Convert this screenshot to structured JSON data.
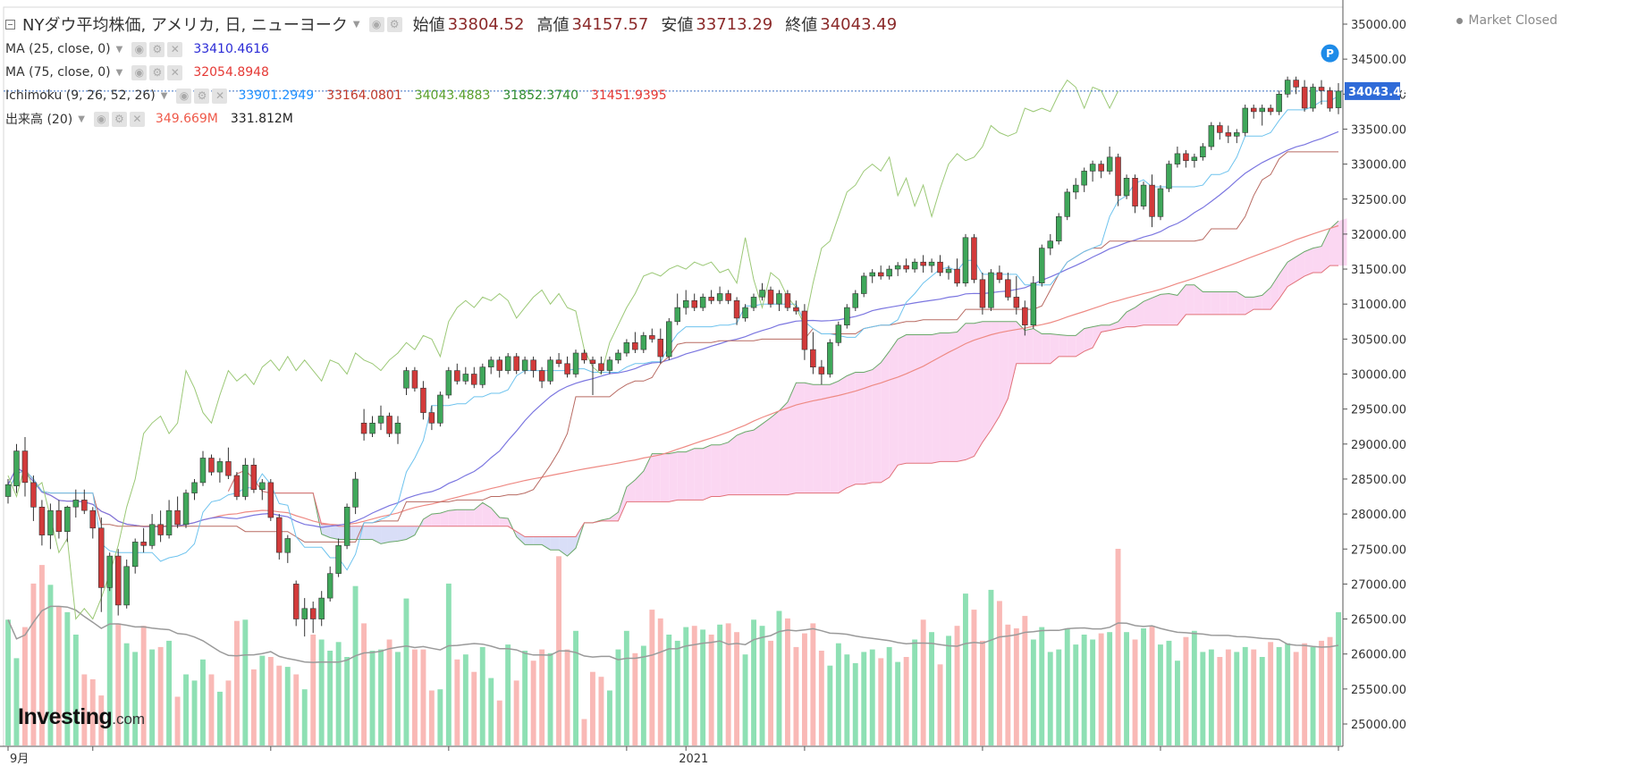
{
  "header": {
    "title": "NYダウ平均株価, アメリカ, 日, ニューヨーク",
    "ohlc": [
      {
        "label": "始値",
        "value": "33804.52"
      },
      {
        "label": "高値",
        "value": "34157.57"
      },
      {
        "label": "安値",
        "value": "33713.29"
      },
      {
        "label": "終値",
        "value": "34043.49"
      }
    ]
  },
  "indicators": {
    "ma25": {
      "label": "MA (25, close, 0)",
      "value": "33410.4616",
      "color": "#2b2bd6"
    },
    "ma75": {
      "label": "MA (75, close, 0)",
      "value": "32054.8948",
      "color": "#e53935"
    },
    "ichimoku": {
      "label": "Ichimoku (9, 26, 52, 26)",
      "values": [
        {
          "value": "33901.2949",
          "color": "#1e90ff"
        },
        {
          "value": "33164.0801",
          "color": "#c0392b"
        },
        {
          "value": "34043.4883",
          "color": "#5aa02c"
        },
        {
          "value": "31852.3740",
          "color": "#2e8b2e"
        },
        {
          "value": "31451.9395",
          "color": "#e53935"
        }
      ]
    },
    "volume": {
      "label": "出来高 (20)",
      "value": "349.669M",
      "value_color": "#ef5a4a",
      "ma_value": "331.812M"
    }
  },
  "status": {
    "market": "Market Closed"
  },
  "logo": {
    "main": "Investing",
    "sub": ".com"
  },
  "last_price": "34043.49",
  "colors": {
    "up": "#3fa75a",
    "down": "#d23a3a",
    "up_vol": "#8ee0b4",
    "down_vol": "#f9b9b6",
    "cloud_bull": "#fbd3f1",
    "cloud_bear": "#d5daf6",
    "ma25": "#7b76e0",
    "ma75": "#ee8a84",
    "tenkan": "#6ec3ee",
    "kijun": "#b86a62",
    "chikou": "#9bc876",
    "vol_ma": "#9a9a9a"
  },
  "chart_data": {
    "type": "candlestick",
    "title": "NYダウ平均株価, アメリカ, 日, ニューヨーク",
    "y_ticks": [
      "35000.00",
      "34500.00",
      "34000.00",
      "33500.00",
      "33000.00",
      "32500.00",
      "32000.00",
      "31500.00",
      "31000.00",
      "30500.00",
      "30000.00",
      "29500.00",
      "29000.00",
      "28500.00",
      "28000.00",
      "27500.00",
      "27000.00",
      "26500.00",
      "26000.00",
      "25500.00",
      "25000.00"
    ],
    "ylim": [
      24650,
      35250
    ],
    "x_labels": [
      "9月",
      "2021"
    ],
    "x_label_index": [
      0,
      80
    ],
    "last_bar_marker": "P",
    "candles_ohlc": [
      [
        28250,
        28500,
        28150,
        28420
      ],
      [
        28400,
        29000,
        28300,
        28900
      ],
      [
        28900,
        29100,
        28250,
        28450
      ],
      [
        28450,
        28550,
        27900,
        28100
      ],
      [
        28100,
        28200,
        27550,
        27700
      ],
      [
        27700,
        28150,
        27500,
        28050
      ],
      [
        28050,
        28200,
        27650,
        27750
      ],
      [
        27750,
        28120,
        27600,
        28100
      ],
      [
        28100,
        28350,
        27950,
        28200
      ],
      [
        28200,
        28350,
        28000,
        28050
      ],
      [
        28050,
        28100,
        27650,
        27800
      ],
      [
        27800,
        27950,
        26600,
        26950
      ],
      [
        26950,
        27450,
        26900,
        27400
      ],
      [
        27400,
        27500,
        26550,
        26700
      ],
      [
        26700,
        27350,
        26650,
        27250
      ],
      [
        27250,
        27650,
        27150,
        27600
      ],
      [
        27600,
        27800,
        27450,
        27550
      ],
      [
        27550,
        28000,
        27500,
        27850
      ],
      [
        27850,
        28050,
        27600,
        27700
      ],
      [
        27700,
        28200,
        27650,
        28050
      ],
      [
        28050,
        28250,
        27800,
        27850
      ],
      [
        27850,
        28350,
        27800,
        28300
      ],
      [
        28300,
        28500,
        28200,
        28450
      ],
      [
        28450,
        28900,
        28400,
        28800
      ],
      [
        28800,
        28850,
        28550,
        28600
      ],
      [
        28600,
        28800,
        28450,
        28750
      ],
      [
        28750,
        28950,
        28500,
        28550
      ],
      [
        28550,
        28600,
        28200,
        28250
      ],
      [
        28250,
        28800,
        28200,
        28700
      ],
      [
        28700,
        28800,
        28300,
        28350
      ],
      [
        28350,
        28500,
        28200,
        28450
      ],
      [
        28450,
        28500,
        27900,
        27950
      ],
      [
        27950,
        28000,
        27350,
        27450
      ],
      [
        27450,
        27700,
        27300,
        27650
      ],
      [
        27000,
        27050,
        26400,
        26500
      ],
      [
        26500,
        26800,
        26250,
        26650
      ],
      [
        26650,
        26750,
        26300,
        26500
      ],
      [
        26500,
        26900,
        26400,
        26800
      ],
      [
        26800,
        27250,
        26750,
        27150
      ],
      [
        27150,
        27650,
        27100,
        27550
      ],
      [
        27550,
        28150,
        27500,
        28100
      ],
      [
        28100,
        28600,
        28000,
        28500
      ],
      [
        29300,
        29500,
        29050,
        29150
      ],
      [
        29150,
        29400,
        29100,
        29300
      ],
      [
        29300,
        29550,
        29200,
        29400
      ],
      [
        29400,
        29450,
        29100,
        29150
      ],
      [
        29150,
        29400,
        29000,
        29300
      ],
      [
        29800,
        30100,
        29700,
        30050
      ],
      [
        30050,
        30100,
        29750,
        29800
      ],
      [
        29800,
        29900,
        29350,
        29450
      ],
      [
        29450,
        29550,
        29200,
        29300
      ],
      [
        29300,
        29750,
        29250,
        29700
      ],
      [
        29700,
        30100,
        29650,
        30050
      ],
      [
        30050,
        30150,
        29850,
        29900
      ],
      [
        29900,
        30100,
        29850,
        30000
      ],
      [
        30000,
        30100,
        29800,
        29850
      ],
      [
        29850,
        30150,
        29800,
        30100
      ],
      [
        30100,
        30250,
        30000,
        30200
      ],
      [
        30200,
        30250,
        29950,
        30050
      ],
      [
        30050,
        30300,
        30000,
        30250
      ],
      [
        30250,
        30300,
        30000,
        30050
      ],
      [
        30050,
        30250,
        30000,
        30200
      ],
      [
        30200,
        30250,
        29950,
        30050
      ],
      [
        30050,
        30100,
        29800,
        29900
      ],
      [
        29900,
        30250,
        29850,
        30200
      ],
      [
        30200,
        30300,
        30100,
        30150
      ],
      [
        30150,
        30250,
        29950,
        30000
      ],
      [
        30000,
        30350,
        29950,
        30300
      ],
      [
        30300,
        30350,
        30150,
        30200
      ],
      [
        30200,
        30250,
        29700,
        30150
      ],
      [
        30150,
        30250,
        30000,
        30050
      ],
      [
        30050,
        30250,
        30000,
        30200
      ],
      [
        30200,
        30350,
        30150,
        30300
      ],
      [
        30300,
        30500,
        30250,
        30450
      ],
      [
        30450,
        30600,
        30300,
        30350
      ],
      [
        30350,
        30600,
        30300,
        30550
      ],
      [
        30550,
        30650,
        30450,
        30500
      ],
      [
        30500,
        30650,
        30150,
        30250
      ],
      [
        30250,
        30800,
        30200,
        30750
      ],
      [
        30750,
        31150,
        30700,
        30950
      ],
      [
        30950,
        31200,
        30850,
        31050
      ],
      [
        31050,
        31150,
        30900,
        30950
      ],
      [
        30950,
        31150,
        30900,
        31100
      ],
      [
        31100,
        31200,
        31000,
        31050
      ],
      [
        31050,
        31250,
        31000,
        31150
      ],
      [
        31150,
        31200,
        31000,
        31050
      ],
      [
        31050,
        31100,
        30700,
        30800
      ],
      [
        30800,
        31000,
        30750,
        30950
      ],
      [
        30950,
        31150,
        30900,
        31100
      ],
      [
        31100,
        31300,
        31050,
        31200
      ],
      [
        31200,
        31250,
        30950,
        31000
      ],
      [
        31000,
        31200,
        30900,
        31150
      ],
      [
        31150,
        31200,
        30900,
        30950
      ],
      [
        30950,
        31050,
        30850,
        30900
      ],
      [
        30900,
        31000,
        30200,
        30350
      ],
      [
        30350,
        30600,
        30000,
        30100
      ],
      [
        30100,
        30200,
        29850,
        30000
      ],
      [
        30000,
        30500,
        29950,
        30450
      ],
      [
        30450,
        30750,
        30400,
        30700
      ],
      [
        30700,
        31000,
        30650,
        30950
      ],
      [
        30950,
        31200,
        30900,
        31150
      ],
      [
        31150,
        31450,
        31100,
        31400
      ],
      [
        31400,
        31500,
        31300,
        31450
      ],
      [
        31450,
        31550,
        31350,
        31400
      ],
      [
        31400,
        31550,
        31350,
        31500
      ],
      [
        31500,
        31600,
        31400,
        31550
      ],
      [
        31550,
        31650,
        31450,
        31500
      ],
      [
        31500,
        31650,
        31450,
        31600
      ],
      [
        31600,
        31700,
        31450,
        31550
      ],
      [
        31550,
        31650,
        31450,
        31600
      ],
      [
        31600,
        31700,
        31400,
        31450
      ],
      [
        31450,
        31550,
        31350,
        31500
      ],
      [
        31500,
        31650,
        31250,
        31300
      ],
      [
        31300,
        32000,
        31250,
        31950
      ],
      [
        31950,
        32000,
        31300,
        31350
      ],
      [
        31350,
        31450,
        30850,
        30950
      ],
      [
        30950,
        31500,
        30900,
        31450
      ],
      [
        31450,
        31550,
        31300,
        31350
      ],
      [
        31350,
        31450,
        31050,
        31100
      ],
      [
        31100,
        31400,
        30850,
        30950
      ],
      [
        30950,
        31050,
        30550,
        30700
      ],
      [
        30700,
        31400,
        30650,
        31300
      ],
      [
        31300,
        31850,
        31250,
        31800
      ],
      [
        31800,
        32000,
        31700,
        31900
      ],
      [
        31900,
        32300,
        31850,
        32250
      ],
      [
        32250,
        32650,
        32200,
        32600
      ],
      [
        32600,
        32800,
        32500,
        32700
      ],
      [
        32700,
        32950,
        32600,
        32900
      ],
      [
        32900,
        33050,
        32750,
        33000
      ],
      [
        33000,
        33050,
        32800,
        32900
      ],
      [
        32900,
        33250,
        32850,
        33100
      ],
      [
        33100,
        33150,
        32400,
        32550
      ],
      [
        32550,
        32850,
        32500,
        32800
      ],
      [
        32800,
        32850,
        32300,
        32400
      ],
      [
        32400,
        32750,
        32350,
        32700
      ],
      [
        32700,
        32850,
        32100,
        32250
      ],
      [
        32250,
        32700,
        32200,
        32650
      ],
      [
        32650,
        33050,
        32600,
        33000
      ],
      [
        33000,
        33250,
        32950,
        33150
      ],
      [
        33150,
        33200,
        32950,
        33050
      ],
      [
        33050,
        33150,
        32950,
        33100
      ],
      [
        33100,
        33300,
        33050,
        33250
      ],
      [
        33250,
        33600,
        33200,
        33550
      ],
      [
        33550,
        33600,
        33350,
        33450
      ],
      [
        33450,
        33550,
        33300,
        33400
      ],
      [
        33400,
        33500,
        33300,
        33450
      ],
      [
        33450,
        33850,
        33400,
        33800
      ],
      [
        33800,
        33850,
        33650,
        33750
      ],
      [
        33750,
        33850,
        33550,
        33800
      ],
      [
        33800,
        33850,
        33700,
        33750
      ],
      [
        33750,
        34050,
        33700,
        34000
      ],
      [
        34000,
        34250,
        33950,
        34200
      ],
      [
        34200,
        34250,
        34000,
        34100
      ],
      [
        34100,
        34200,
        33750,
        33800
      ],
      [
        33800,
        34150,
        33750,
        34100
      ],
      [
        34100,
        34200,
        33850,
        34050
      ],
      [
        34050,
        34100,
        33750,
        33800
      ],
      [
        33804.52,
        34157.57,
        33713.29,
        34043.49
      ]
    ],
    "volume_m": [
      344,
      313,
      338,
      373,
      388,
      372,
      355,
      350,
      332,
      300,
      296,
      283,
      383,
      341,
      325,
      318,
      339,
      320,
      322,
      327,
      282,
      300,
      295,
      312,
      300,
      286,
      295,
      343,
      344,
      304,
      315,
      314,
      307,
      306,
      300,
      288,
      332,
      328,
      319,
      326,
      314,
      371,
      341,
      319,
      320,
      328,
      318,
      361,
      320,
      320,
      287,
      288,
      373,
      312,
      316,
      302,
      322,
      297,
      279,
      324,
      295,
      319,
      311,
      320,
      317,
      395,
      320,
      335,
      264,
      302,
      298,
      287,
      320,
      335,
      317,
      323,
      352,
      345,
      332,
      327,
      338,
      339,
      336,
      332,
      340,
      341,
      334,
      316,
      344,
      339,
      327,
      351,
      345,
      322,
      333,
      341,
      319,
      307,
      325,
      316,
      309,
      318,
      320,
      313,
      322,
      310,
      314,
      328,
      344,
      334,
      308,
      331,
      339,
      365,
      352,
      327,
      368,
      359,
      340,
      337,
      347,
      328,
      338,
      318,
      320,
      337,
      324,
      332,
      328,
      333,
      334,
      401,
      334,
      328,
      337,
      339,
      324,
      327,
      311,
      330,
      335,
      318,
      320,
      314,
      320,
      318,
      322,
      320,
      314,
      326,
      322,
      325,
      318,
      325,
      322,
      327,
      330,
      350
    ]
  }
}
